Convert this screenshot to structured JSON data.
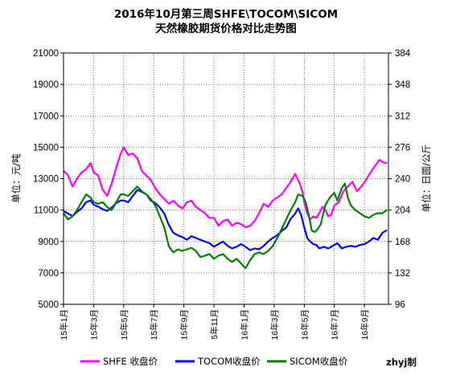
{
  "chart_data": {
    "type": "line",
    "title": [
      "2016年10月第三周SHFE\\TOCOM\\SICOM",
      "天然橡胶期货价格对比走势图"
    ],
    "ylabel_left": "单位：元/吨",
    "ylabel_right": "单位：日圆/公斤",
    "ylim_left": [
      5000,
      21000
    ],
    "ylim_right": [
      96,
      384
    ],
    "yticks_left": [
      5000,
      7000,
      9000,
      11000,
      13000,
      15000,
      17000,
      19000,
      21000
    ],
    "yticks_right": [
      96,
      132,
      168,
      204,
      240,
      276,
      312,
      348,
      384
    ],
    "xlim": [
      0,
      21.6
    ],
    "x_unit": "months since 2015-01",
    "xticks": [
      {
        "x": 0,
        "label": "15年1月"
      },
      {
        "x": 2,
        "label": "15年3月"
      },
      {
        "x": 4,
        "label": "15年5月"
      },
      {
        "x": 6,
        "label": "15年7月"
      },
      {
        "x": 8,
        "label": "15年9月"
      },
      {
        "x": 10,
        "label": "5年11月"
      },
      {
        "x": 12,
        "label": "16年1月"
      },
      {
        "x": 14,
        "label": "16年3月"
      },
      {
        "x": 16,
        "label": "16年5月"
      },
      {
        "x": 18,
        "label": "16年7月"
      },
      {
        "x": 20,
        "label": "16年9月"
      }
    ],
    "grid": true,
    "legend_position": "bottom",
    "series": [
      {
        "name": "SHFE 收盘价",
        "axis": "left",
        "color": "#ff00ff",
        "points": [
          [
            0,
            13500
          ],
          [
            0.3,
            13200
          ],
          [
            0.6,
            12500
          ],
          [
            0.9,
            13000
          ],
          [
            1.2,
            13400
          ],
          [
            1.5,
            13600
          ],
          [
            1.8,
            14000
          ],
          [
            2.0,
            13400
          ],
          [
            2.3,
            13200
          ],
          [
            2.6,
            12300
          ],
          [
            2.9,
            11900
          ],
          [
            3.2,
            12700
          ],
          [
            3.5,
            13700
          ],
          [
            3.8,
            14600
          ],
          [
            4.0,
            15000
          ],
          [
            4.3,
            14500
          ],
          [
            4.6,
            14600
          ],
          [
            4.9,
            14300
          ],
          [
            5.2,
            13500
          ],
          [
            5.5,
            13200
          ],
          [
            5.8,
            12900
          ],
          [
            6.1,
            12400
          ],
          [
            6.4,
            12000
          ],
          [
            6.7,
            11700
          ],
          [
            7.0,
            11400
          ],
          [
            7.3,
            11600
          ],
          [
            7.6,
            11300
          ],
          [
            7.9,
            11100
          ],
          [
            8.2,
            11500
          ],
          [
            8.5,
            11600
          ],
          [
            8.8,
            11200
          ],
          [
            9.1,
            11000
          ],
          [
            9.4,
            10800
          ],
          [
            9.7,
            10500
          ],
          [
            10.0,
            10500
          ],
          [
            10.3,
            10000
          ],
          [
            10.6,
            10300
          ],
          [
            10.9,
            10400
          ],
          [
            11.2,
            10000
          ],
          [
            11.5,
            10200
          ],
          [
            11.8,
            10100
          ],
          [
            12.1,
            9900
          ],
          [
            12.4,
            10000
          ],
          [
            12.7,
            10300
          ],
          [
            13.0,
            10800
          ],
          [
            13.3,
            11400
          ],
          [
            13.6,
            11200
          ],
          [
            13.9,
            11600
          ],
          [
            14.2,
            11800
          ],
          [
            14.5,
            12000
          ],
          [
            14.8,
            12400
          ],
          [
            15.1,
            12800
          ],
          [
            15.4,
            13300
          ],
          [
            15.7,
            12700
          ],
          [
            15.9,
            12100
          ],
          [
            16.0,
            11500
          ],
          [
            16.2,
            10800
          ],
          [
            16.4,
            10400
          ],
          [
            16.6,
            10600
          ],
          [
            16.8,
            10500
          ],
          [
            17.0,
            10800
          ],
          [
            17.2,
            11200
          ],
          [
            17.4,
            11000
          ],
          [
            17.6,
            10600
          ],
          [
            17.8,
            10700
          ],
          [
            18.0,
            11300
          ],
          [
            18.3,
            11500
          ],
          [
            18.6,
            12200
          ],
          [
            18.9,
            12500
          ],
          [
            19.2,
            12800
          ],
          [
            19.5,
            12200
          ],
          [
            19.8,
            12500
          ],
          [
            20.1,
            12900
          ],
          [
            20.4,
            13400
          ],
          [
            20.7,
            13800
          ],
          [
            21.0,
            14200
          ],
          [
            21.3,
            14000
          ],
          [
            21.5,
            14000
          ]
        ]
      },
      {
        "name": "TOCOM收盘价",
        "axis": "right",
        "color": "#0000ff",
        "points": [
          [
            0,
            203
          ],
          [
            0.3,
            200
          ],
          [
            0.6,
            197
          ],
          [
            0.9,
            202
          ],
          [
            1.2,
            206
          ],
          [
            1.5,
            213
          ],
          [
            1.8,
            215
          ],
          [
            2.0,
            210
          ],
          [
            2.3,
            208
          ],
          [
            2.6,
            205
          ],
          [
            2.9,
            203
          ],
          [
            3.2,
            207
          ],
          [
            3.5,
            212
          ],
          [
            3.8,
            215
          ],
          [
            4.0,
            215
          ],
          [
            4.3,
            213
          ],
          [
            4.6,
            220
          ],
          [
            4.9,
            227
          ],
          [
            5.2,
            225
          ],
          [
            5.5,
            222
          ],
          [
            5.8,
            215
          ],
          [
            6.1,
            212
          ],
          [
            6.4,
            207
          ],
          [
            6.7,
            200
          ],
          [
            7.0,
            187
          ],
          [
            7.3,
            178
          ],
          [
            7.6,
            175
          ],
          [
            7.9,
            173
          ],
          [
            8.2,
            170
          ],
          [
            8.5,
            174
          ],
          [
            8.8,
            172
          ],
          [
            9.1,
            170
          ],
          [
            9.4,
            168
          ],
          [
            9.7,
            166
          ],
          [
            10.0,
            162
          ],
          [
            10.3,
            165
          ],
          [
            10.6,
            168
          ],
          [
            10.9,
            163
          ],
          [
            11.2,
            160
          ],
          [
            11.5,
            162
          ],
          [
            11.8,
            165
          ],
          [
            12.1,
            162
          ],
          [
            12.4,
            158
          ],
          [
            12.7,
            160
          ],
          [
            13.0,
            159
          ],
          [
            13.3,
            163
          ],
          [
            13.6,
            168
          ],
          [
            13.9,
            172
          ],
          [
            14.2,
            175
          ],
          [
            14.5,
            180
          ],
          [
            14.8,
            184
          ],
          [
            15.1,
            194
          ],
          [
            15.4,
            200
          ],
          [
            15.6,
            206
          ],
          [
            15.8,
            198
          ],
          [
            16.0,
            184
          ],
          [
            16.2,
            172
          ],
          [
            16.4,
            168
          ],
          [
            16.6,
            165
          ],
          [
            16.8,
            164
          ],
          [
            17.0,
            160
          ],
          [
            17.3,
            162
          ],
          [
            17.6,
            160
          ],
          [
            17.9,
            163
          ],
          [
            18.2,
            166
          ],
          [
            18.5,
            160
          ],
          [
            18.8,
            162
          ],
          [
            19.1,
            163
          ],
          [
            19.4,
            162
          ],
          [
            19.7,
            164
          ],
          [
            20.0,
            165
          ],
          [
            20.3,
            168
          ],
          [
            20.6,
            172
          ],
          [
            20.9,
            170
          ],
          [
            21.2,
            178
          ],
          [
            21.5,
            181
          ]
        ]
      },
      {
        "name": "SICOM收盘价",
        "axis": "left",
        "color": "#008000",
        "points": [
          [
            0,
            10800
          ],
          [
            0.3,
            10400
          ],
          [
            0.6,
            10600
          ],
          [
            0.9,
            11000
          ],
          [
            1.2,
            11500
          ],
          [
            1.5,
            12000
          ],
          [
            1.8,
            11800
          ],
          [
            2.0,
            11500
          ],
          [
            2.3,
            11400
          ],
          [
            2.6,
            11500
          ],
          [
            2.9,
            11200
          ],
          [
            3.2,
            11000
          ],
          [
            3.5,
            11500
          ],
          [
            3.8,
            12000
          ],
          [
            4.0,
            12000
          ],
          [
            4.3,
            11900
          ],
          [
            4.6,
            12200
          ],
          [
            4.9,
            12500
          ],
          [
            5.2,
            12200
          ],
          [
            5.5,
            12000
          ],
          [
            5.8,
            11700
          ],
          [
            6.1,
            11300
          ],
          [
            6.4,
            10600
          ],
          [
            6.7,
            9900
          ],
          [
            7.0,
            8700
          ],
          [
            7.3,
            8300
          ],
          [
            7.6,
            8500
          ],
          [
            7.9,
            8400
          ],
          [
            8.2,
            8500
          ],
          [
            8.5,
            8600
          ],
          [
            8.8,
            8400
          ],
          [
            9.1,
            8000
          ],
          [
            9.4,
            8100
          ],
          [
            9.7,
            8200
          ],
          [
            10.0,
            7900
          ],
          [
            10.3,
            8100
          ],
          [
            10.6,
            8200
          ],
          [
            10.9,
            7900
          ],
          [
            11.2,
            7700
          ],
          [
            11.5,
            7900
          ],
          [
            11.8,
            7600
          ],
          [
            12.1,
            7300
          ],
          [
            12.4,
            7800
          ],
          [
            12.7,
            8200
          ],
          [
            13.0,
            8300
          ],
          [
            13.3,
            8200
          ],
          [
            13.6,
            8400
          ],
          [
            13.9,
            8700
          ],
          [
            14.2,
            9200
          ],
          [
            14.5,
            9800
          ],
          [
            14.8,
            10400
          ],
          [
            15.1,
            11000
          ],
          [
            15.4,
            11500
          ],
          [
            15.6,
            12000
          ],
          [
            15.9,
            11900
          ],
          [
            16.1,
            11500
          ],
          [
            16.3,
            10700
          ],
          [
            16.5,
            9700
          ],
          [
            16.7,
            9600
          ],
          [
            16.9,
            9800
          ],
          [
            17.1,
            10100
          ],
          [
            17.4,
            11300
          ],
          [
            17.7,
            11800
          ],
          [
            18.0,
            12100
          ],
          [
            18.2,
            11600
          ],
          [
            18.5,
            12400
          ],
          [
            18.7,
            12700
          ],
          [
            18.9,
            11800
          ],
          [
            19.1,
            11300
          ],
          [
            19.4,
            11000
          ],
          [
            19.7,
            10800
          ],
          [
            20.0,
            10600
          ],
          [
            20.3,
            10500
          ],
          [
            20.6,
            10700
          ],
          [
            20.9,
            10800
          ],
          [
            21.2,
            10800
          ],
          [
            21.5,
            11000
          ]
        ]
      }
    ],
    "credit": "zhyj制"
  }
}
